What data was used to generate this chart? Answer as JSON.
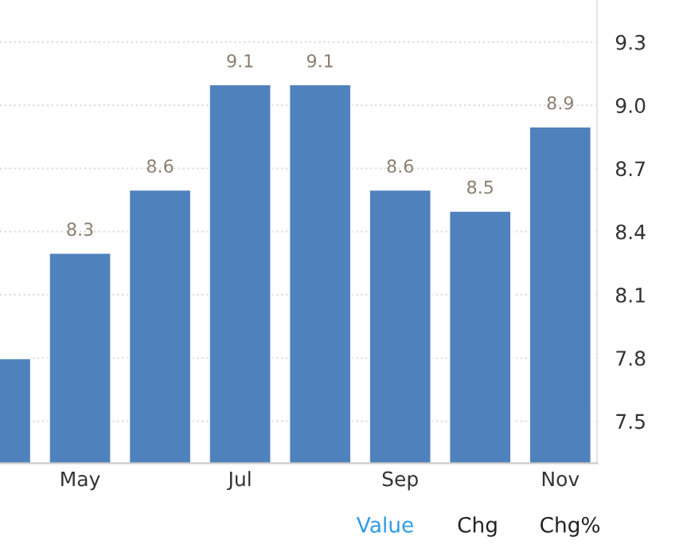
{
  "chart_data": {
    "type": "bar",
    "categories": [
      null,
      "May",
      null,
      "Jul",
      null,
      "Sep",
      null,
      "Nov"
    ],
    "values": [
      7.8,
      8.3,
      8.6,
      9.1,
      9.1,
      8.6,
      8.5,
      8.9
    ],
    "value_labels": [
      null,
      "8.3",
      "8.6",
      "9.1",
      "9.1",
      "8.6",
      "8.5",
      "8.9"
    ],
    "color": "#4f81bd",
    "ylim": [
      7.3,
      9.5
    ],
    "yticks": [
      7.5,
      7.8,
      8.1,
      8.4,
      8.7,
      {
        "value": 9,
        "label": "9.0"
      },
      9.3
    ],
    "grid": "y",
    "annotations": [
      "Value",
      "Chg",
      "Chg%"
    ]
  }
}
